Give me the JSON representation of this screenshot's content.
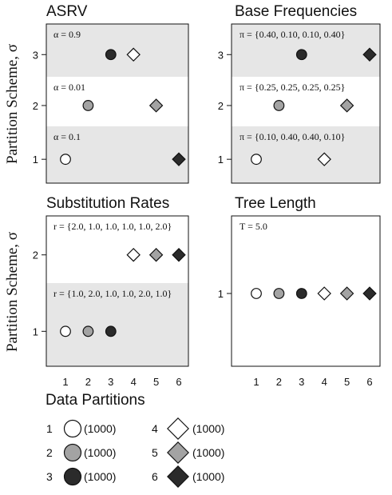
{
  "y_axis_label": "Partition Scheme, σ",
  "x_ticks": [
    "1",
    "2",
    "3",
    "4",
    "5",
    "6"
  ],
  "panels": [
    {
      "title": "ASRV",
      "y_ticks": [
        "1",
        "2",
        "3"
      ],
      "bands": [
        {
          "scheme": 3,
          "label": "α = 0.9",
          "shaded": true
        },
        {
          "scheme": 2,
          "label": "α = 0.01",
          "shaded": false
        },
        {
          "scheme": 1,
          "label": "α = 0.1",
          "shaded": true
        }
      ],
      "points": [
        {
          "scheme": 3,
          "partitions": [
            3,
            4
          ]
        },
        {
          "scheme": 2,
          "partitions": [
            2,
            5
          ]
        },
        {
          "scheme": 1,
          "partitions": [
            1,
            6
          ]
        }
      ]
    },
    {
      "title": "Base Frequencies",
      "y_ticks": [
        "1",
        "2",
        "3"
      ],
      "bands": [
        {
          "scheme": 3,
          "label": "π = {0.40, 0.10, 0.10, 0.40}",
          "shaded": true
        },
        {
          "scheme": 2,
          "label": "π = {0.25, 0.25, 0.25, 0.25}",
          "shaded": false
        },
        {
          "scheme": 1,
          "label": "π = {0.10, 0.40, 0.40, 0.10}",
          "shaded": true
        }
      ],
      "points": [
        {
          "scheme": 3,
          "partitions": [
            3,
            6
          ]
        },
        {
          "scheme": 2,
          "partitions": [
            2,
            5
          ]
        },
        {
          "scheme": 1,
          "partitions": [
            1,
            4
          ]
        }
      ]
    },
    {
      "title": "Substitution Rates",
      "y_ticks": [
        "1",
        "2"
      ],
      "bands": [
        {
          "scheme": 2,
          "label": "r = {2.0, 1.0, 1.0, 1.0, 1.0, 2.0}",
          "shaded": false
        },
        {
          "scheme": 1,
          "label": "r = {1.0, 2.0, 1.0, 1.0, 2.0, 1.0}",
          "shaded": true
        }
      ],
      "points": [
        {
          "scheme": 2,
          "partitions": [
            4,
            5,
            6
          ]
        },
        {
          "scheme": 1,
          "partitions": [
            1,
            2,
            3
          ]
        }
      ]
    },
    {
      "title": "Tree Length",
      "y_ticks": [
        "1"
      ],
      "bands": [
        {
          "scheme": 1,
          "label": "T = 5.0",
          "shaded": false
        }
      ],
      "points": [
        {
          "scheme": 1,
          "partitions": [
            1,
            2,
            3,
            4,
            5,
            6
          ]
        }
      ]
    }
  ],
  "legend": {
    "title": "Data Partitions",
    "items": [
      {
        "number": "1",
        "shape": "circle",
        "fill": "#ffffff",
        "count": "(1000)"
      },
      {
        "number": "2",
        "shape": "circle",
        "fill": "#a3a3a3",
        "count": "(1000)"
      },
      {
        "number": "3",
        "shape": "circle",
        "fill": "#2b2b2b",
        "count": "(1000)"
      },
      {
        "number": "4",
        "shape": "diamond",
        "fill": "#ffffff",
        "count": "(1000)"
      },
      {
        "number": "5",
        "shape": "diamond",
        "fill": "#a3a3a3",
        "count": "(1000)"
      },
      {
        "number": "6",
        "shape": "diamond",
        "fill": "#2b2b2b",
        "count": "(1000)"
      }
    ]
  },
  "colors": {
    "band_shade": "#e6e6e6",
    "marker_stroke": "#111111",
    "frame": "#111111"
  }
}
